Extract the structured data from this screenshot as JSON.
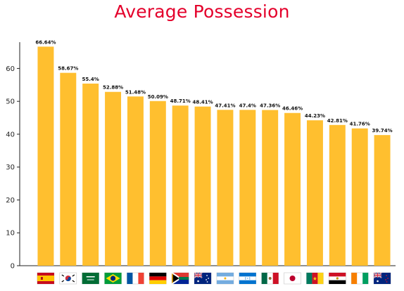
{
  "chart_data": {
    "type": "bar",
    "title": "Average Possession",
    "xlabel": "",
    "ylabel": "",
    "ylim": [
      0,
      68
    ],
    "yticks": [
      0,
      10,
      20,
      30,
      40,
      50,
      60
    ],
    "grid": false,
    "bar_color": "#ffbf2f",
    "categories": [
      "spain-flag",
      "south-korea-flag",
      "saudi-arabia-flag",
      "brazil-flag",
      "france-flag",
      "germany-flag",
      "south-africa-flag",
      "australia-flag",
      "argentina-flag",
      "honduras-flag",
      "mexico-flag",
      "japan-flag",
      "cameroon-flag",
      "egypt-flag",
      "ivory-coast-flag",
      "new-zealand-flag"
    ],
    "values": [
      66.64,
      58.67,
      55.4,
      52.88,
      51.48,
      50.09,
      48.71,
      48.41,
      47.41,
      47.4,
      47.36,
      46.46,
      44.23,
      42.81,
      41.76,
      39.74
    ],
    "data_labels": [
      "66.64%",
      "58.67%",
      "55.4%",
      "52.88%",
      "51.48%",
      "50.09%",
      "48.71%",
      "48.41%",
      "47.41%",
      "47.4%",
      "47.36%",
      "46.46%",
      "44.23%",
      "42.81%",
      "41.76%",
      "39.74%"
    ]
  }
}
